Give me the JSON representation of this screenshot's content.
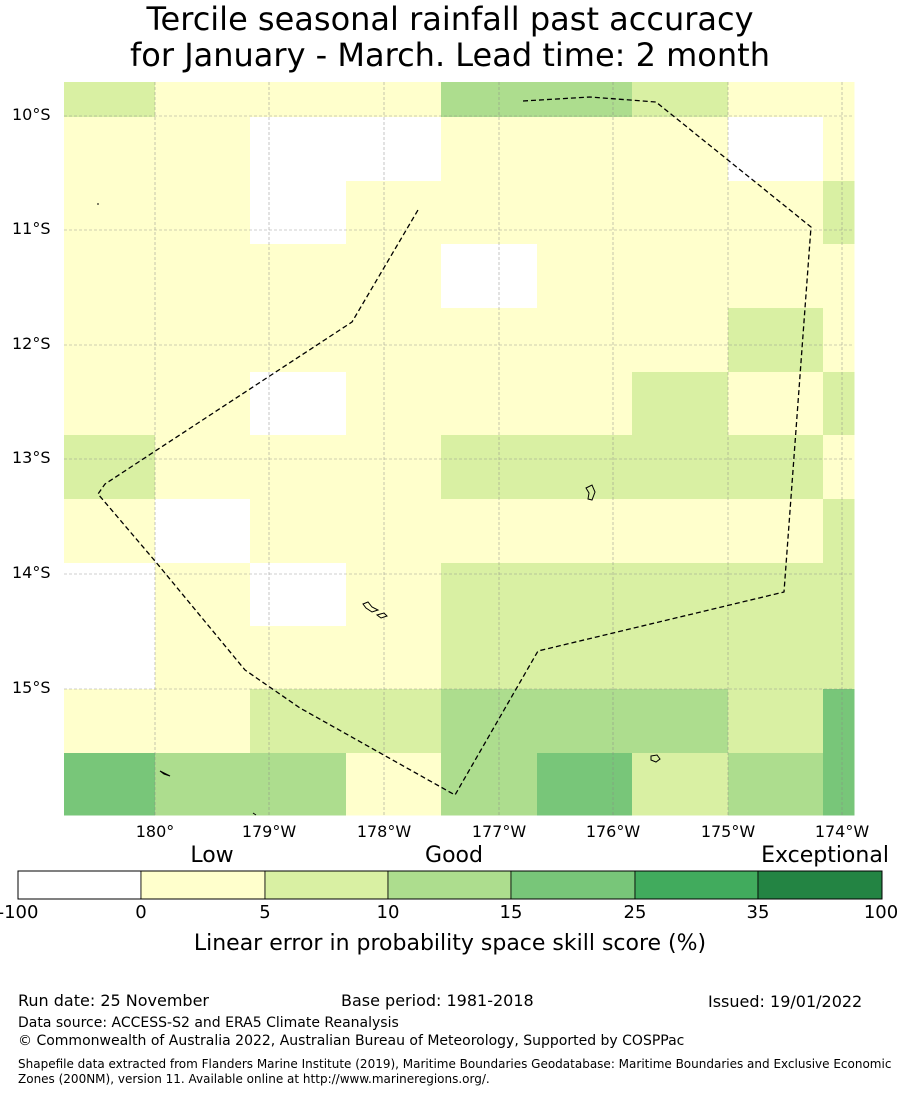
{
  "title": {
    "line1": "Tercile seasonal rainfall past accuracy",
    "line2": "for January - March. Lead time: 2 month"
  },
  "latitude_labels": [
    "10°S",
    "11°S",
    "12°S",
    "13°S",
    "14°S",
    "15°S"
  ],
  "longitude_labels": [
    "180°",
    "179°W",
    "178°W",
    "177°W",
    "176°W",
    "175°W",
    "174°W"
  ],
  "colorbar": {
    "categories": [
      "Low",
      "Good",
      "Exceptional"
    ],
    "ticks": [
      "-100",
      "0",
      "5",
      "10",
      "15",
      "25",
      "35",
      "100"
    ],
    "colors": [
      "#ffffff",
      "#ffffcc",
      "#d9f0a3",
      "#addd8e",
      "#78c679",
      "#41ab5d",
      "#238443"
    ],
    "title": "Linear error in probability space skill score (%)"
  },
  "grid_colors": {
    "W": "#ffffff",
    "Y": "#ffffcc",
    "L": "#d9f0a3",
    "M": "#addd8e",
    "D": "#78c679"
  },
  "skill_grid": [
    "LYYYMMLYY",
    "YYWWYYYWY",
    "YYWYYYYYL",
    "YYYYWYYYY",
    "YYYYYYYLY",
    "YYWYYYLYL",
    "LYYYLLLLY",
    "YWYYYYYYL",
    "WYWYLLLLL",
    "WYYYLLLLL",
    "YYLLMMMLD",
    "DMMYMDLMD"
  ],
  "footer": {
    "run_date": "Run date: 25 November",
    "base_period": "Base period: 1981-2018",
    "issued": "Issued: 19/01/2022",
    "data_source": "Data source: ACCESS-S2 and ERA5 Climate Reanalysis",
    "copyright": "© Commonwealth of Australia 2022, Australian Bureau of Meteorology, Supported by COSPPac",
    "shapefile": "Shapefile data extracted from Flanders Marine Institute (2019), Maritime Boundaries Geodatabase: Maritime Boundaries and Exclusive Economic Zones (200NM), version 11. Available online at http://www.marineregions.org/."
  }
}
